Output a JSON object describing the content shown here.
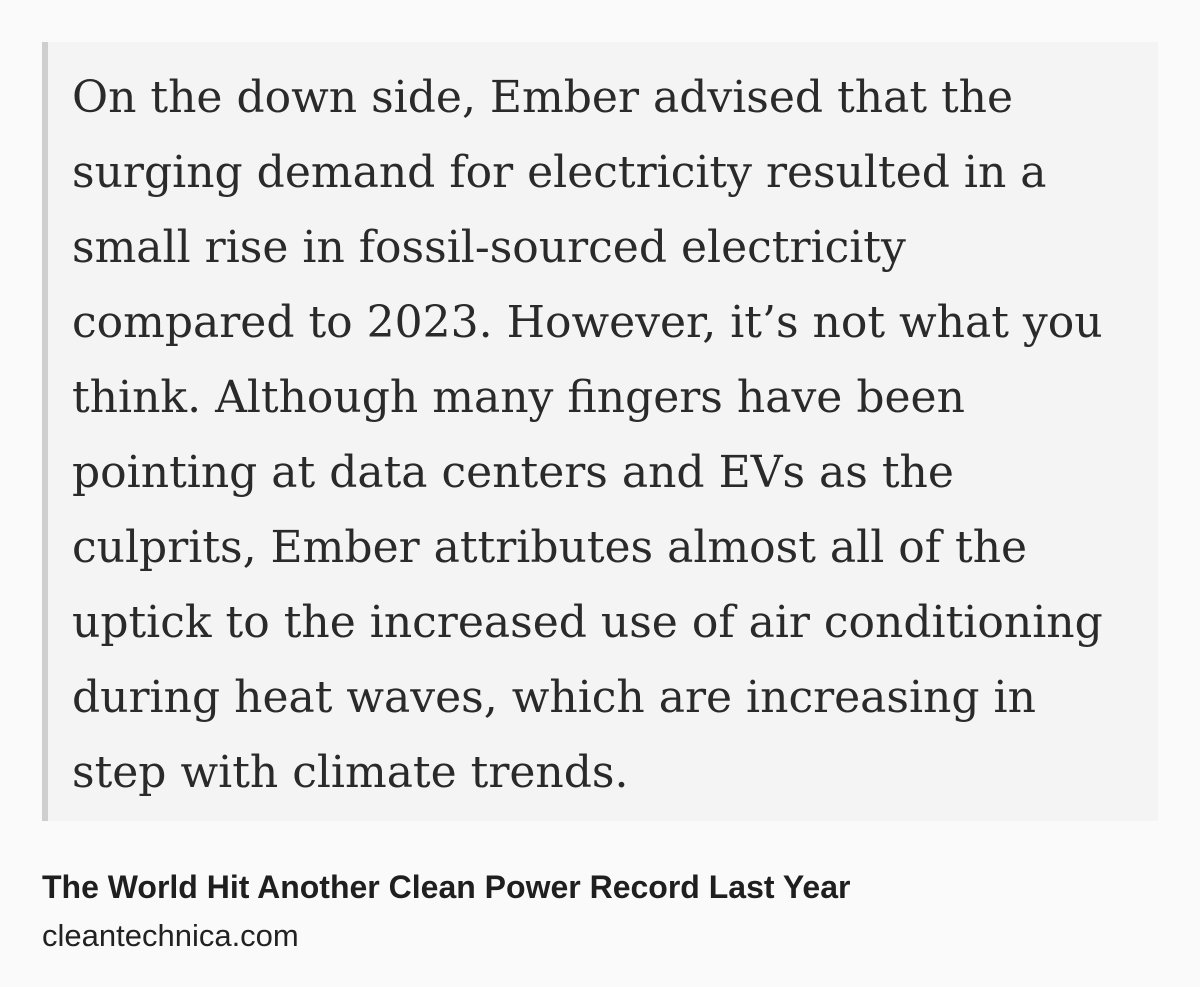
{
  "quote": {
    "lines": [
      "On the down side, Ember advised that the",
      "surging demand for electricity resulted in a",
      "small rise in fossil-sourced electricity",
      "compared to 2023. However, it’s not what you",
      "think. Although many fingers have been",
      "pointing at data centers and EVs as the",
      "culprits, Ember attributes almost all of the",
      "uptick to the increased use of air conditioning",
      "during heat waves, which are increasing in",
      "step with climate trends."
    ]
  },
  "link_preview": {
    "title": "The World Hit Another Clean Power Record Last Year",
    "domain": "cleantechnica.com"
  },
  "colors": {
    "page_background": "#fafafa",
    "quote_background": "#f4f4f4",
    "quote_border": "#cfcfcf",
    "text": "#222222"
  }
}
